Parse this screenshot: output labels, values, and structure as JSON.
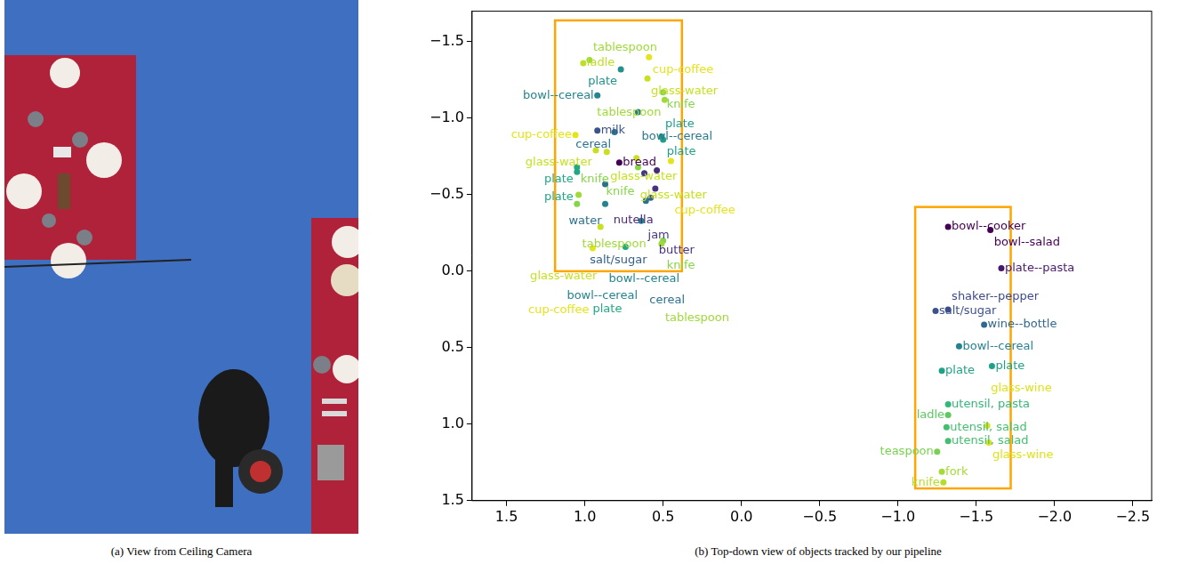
{
  "image": {
    "caption": "(a) View from Ceiling Camera"
  },
  "chart_data": {
    "type": "scatter",
    "caption": "(b) Top-down view of objects tracked by our pipeline",
    "xlim": [
      1.72,
      -2.62
    ],
    "ylim": [
      1.5,
      -1.7
    ],
    "xticks": [
      1.5,
      {
        "value": 1,
        "label": "1.0"
      },
      0.5,
      {
        "value": 0,
        "label": "0.0"
      },
      {
        "value": -0.5,
        "label": "−0.5"
      },
      {
        "value": -1,
        "label": "−1.0"
      },
      {
        "value": -1.5,
        "label": "−1.5"
      },
      {
        "value": -2,
        "label": "−2.0"
      },
      {
        "value": -2.5,
        "label": "−2.5"
      }
    ],
    "yticks": [
      {
        "value": -1.5,
        "label": "−1.5"
      },
      {
        "value": -1,
        "label": "−1.0"
      },
      {
        "value": -0.5,
        "label": "−0.5"
      },
      {
        "value": 0,
        "label": "0.0"
      },
      0.5,
      {
        "value": 1,
        "label": "1.0"
      },
      1.5
    ],
    "grid": false,
    "x": [
      1.01,
      0.97,
      0.59,
      0.77,
      0.6,
      0.92,
      0.5,
      0.49,
      0.66,
      0.92,
      0.81,
      1.06,
      0.51,
      0.5,
      0.93,
      0.86,
      0.67,
      0.45,
      0.78,
      0.66,
      0.54,
      1.05,
      1.05,
      0.62,
      0.87,
      0.55,
      1.04,
      0.58,
      1.05,
      0.87,
      0.61,
      0.64,
      0.9,
      0.74,
      0.5,
      0.51,
      0.95,
      -1.32,
      -1.59,
      -1.66,
      -1.24,
      -1.32,
      -1.55,
      -1.39,
      -1.28,
      -1.6,
      -1.32,
      -1.32,
      -1.31,
      -1.32,
      -1.57,
      -1.58,
      -1.25,
      -1.28,
      -1.29
    ],
    "y": [
      -1.36,
      -1.38,
      -1.4,
      -1.32,
      -1.26,
      -1.15,
      -1.17,
      -1.12,
      -1.04,
      -0.92,
      -0.91,
      -0.89,
      -0.88,
      -0.86,
      -0.79,
      -0.78,
      -0.74,
      -0.72,
      -0.71,
      -0.68,
      -0.66,
      -0.68,
      -0.65,
      -0.64,
      -0.57,
      -0.54,
      -0.5,
      -0.48,
      -0.44,
      -0.44,
      -0.46,
      -0.33,
      -0.29,
      -0.16,
      -0.2,
      -0.18,
      -0.15,
      -0.29,
      -0.27,
      -0.02,
      0.26,
      0.25,
      0.35,
      0.49,
      0.65,
      0.62,
      0.87,
      0.94,
      1.02,
      1.11,
      1.01,
      1.12,
      1.18,
      1.31,
      1.38
    ],
    "point_labels": [
      "ladle",
      "tablespoon",
      "cup-coffee",
      "plate",
      "glass-water",
      "bowl--cereal",
      "knife",
      "tablespoon",
      "bowl--cereal",
      "milk",
      "cereal",
      "cup-coffee",
      "plate",
      "plate",
      "glass-water",
      "glass-water",
      "glass-water",
      "cup-coffee",
      "bread",
      "knife",
      "nutella",
      "plate",
      "plate",
      "jam",
      "water",
      "butter",
      "tablespoon",
      "salt/sugar",
      "knife",
      "bowl--cereal",
      "cereal",
      "bowl--cereal",
      "glass-water",
      "plate",
      "knife",
      "tablespoon",
      "cup-coffee",
      "bowl--cooker",
      "bowl--salad",
      "plate--pasta",
      "salt/sugar",
      "shaker--pepper",
      "wine--bottle",
      "bowl--cereal",
      "plate",
      "plate",
      "utensil, pasta",
      "ladle",
      "utensil, salad",
      "utensil, salad",
      "glass-wine",
      "glass-wine",
      "teaspoon",
      "fork",
      "knife"
    ],
    "colors": [
      "#bddf26",
      "#a0da39",
      "#e5e419",
      "#21918c",
      "#c8e020",
      "#25858e",
      "#86d549",
      "#a0da39",
      "#2a788e",
      "#3b528b",
      "#2c728e",
      "#e5e419",
      "#1f9e89",
      "#1f9e89",
      "#c8e020",
      "#c8e020",
      "#c8e020",
      "#e5e419",
      "#440154",
      "#86d549",
      "#482878",
      "#22a884",
      "#22a884",
      "#443983",
      "#2d708e",
      "#46327e",
      "#a0da39",
      "#355f8d",
      "#86d549",
      "#25858e",
      "#2c728e",
      "#25858e",
      "#c8e020",
      "#22a884",
      "#86d549",
      "#a0da39",
      "#e5e419",
      "#440154",
      "#440154",
      "#48186a",
      "#3b528b",
      "#3e4a89",
      "#31688e",
      "#26828e",
      "#1fa187",
      "#1fa187",
      "#35b779",
      "#5ec962",
      "#44bf70",
      "#44bf70",
      "#dde318",
      "#dde318",
      "#7ad151",
      "#a5db36",
      "#b5de2b"
    ],
    "boxes": [
      {
        "x": [
          1.19,
          0.38
        ],
        "y": [
          -1.64,
          0.0
        ],
        "color": "#ffa500"
      },
      {
        "x": [
          -1.11,
          -1.72
        ],
        "y": [
          -0.42,
          1.42
        ],
        "color": "#ffa500"
      }
    ]
  }
}
